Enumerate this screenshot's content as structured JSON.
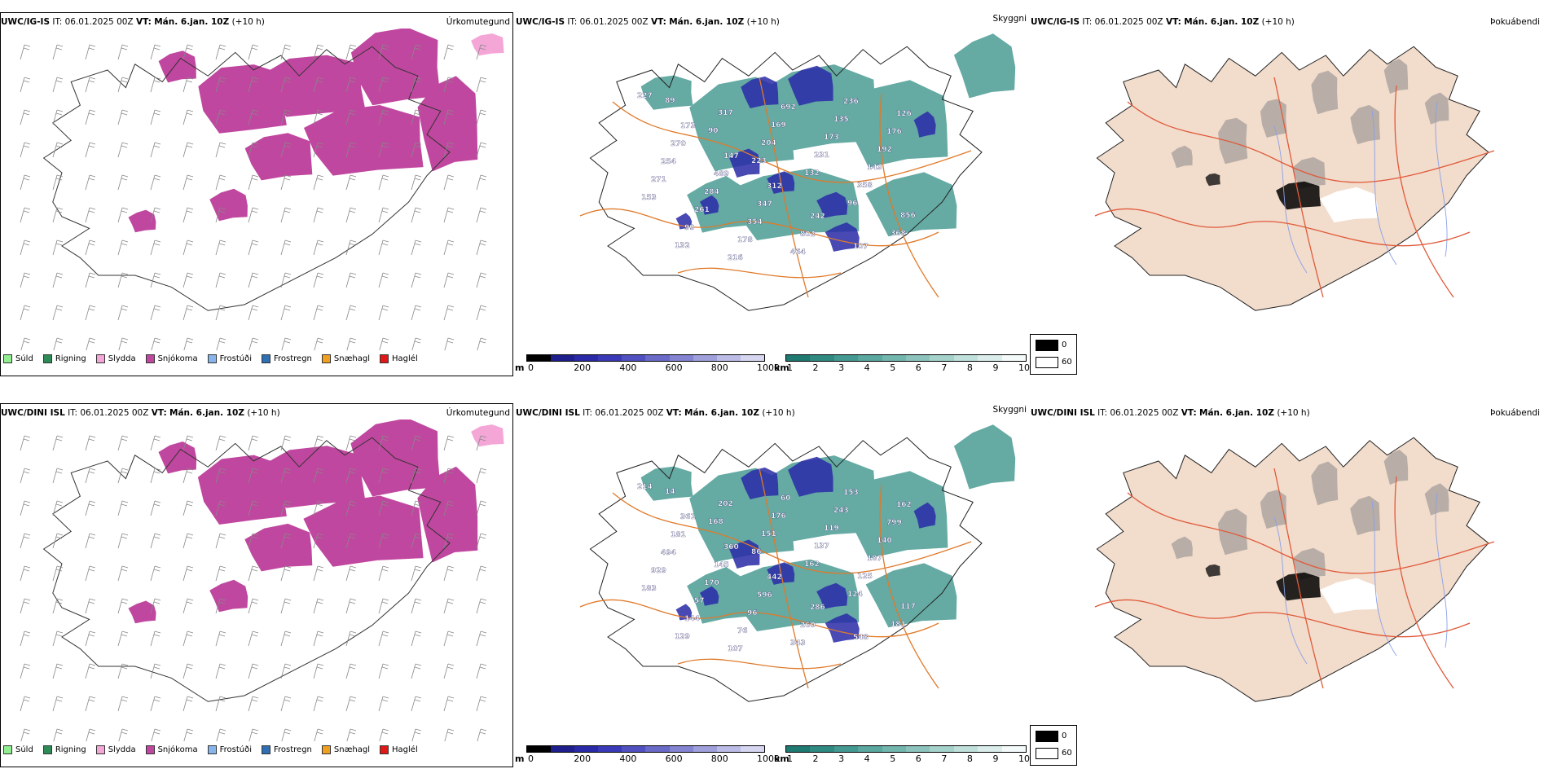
{
  "panels": [
    {
      "model": "UWC/IG-IS",
      "it_label": "IT:",
      "it_value": "06.01.2025 00Z",
      "vt_label": "VT:",
      "vt_value": "Mán. 6.jan. 10Z",
      "lead": "(+10 h)",
      "field": "Úrkomutegund"
    },
    {
      "model": "UWC/IG-IS",
      "it_label": "IT:",
      "it_value": "06.01.2025 00Z",
      "vt_label": "VT:",
      "vt_value": "Mán. 6.jan. 10Z",
      "lead": "(+10 h)",
      "field": "Skyggni"
    },
    {
      "model": "UWC/IG-IS",
      "it_label": "IT:",
      "it_value": "06.01.2025 00Z",
      "vt_label": "VT:",
      "vt_value": "Mán. 6.jan. 10Z",
      "lead": "(+10 h)",
      "field": "Þokuábendi"
    },
    {
      "model": "UWC/DINI ISL",
      "it_label": "IT:",
      "it_value": "06.01.2025 00Z",
      "vt_label": "VT:",
      "vt_value": "Mán. 6.jan. 10Z",
      "lead": "(+10 h)",
      "field": "Úrkomutegund"
    },
    {
      "model": "UWC/DINI ISL",
      "it_label": "IT:",
      "it_value": "06.01.2025 00Z",
      "vt_label": "VT:",
      "vt_value": "Mán. 6.jan. 10Z",
      "lead": "(+10 h)",
      "field": "Skyggni"
    },
    {
      "model": "UWC/DINI ISL",
      "it_label": "IT:",
      "it_value": "06.01.2025 00Z",
      "vt_label": "VT:",
      "vt_value": "Mán. 6.jan. 10Z",
      "lead": "(+10 h)",
      "field": "Þokuábendi"
    }
  ],
  "precip_legend": [
    {
      "label": "Súld",
      "color": "#90ee90"
    },
    {
      "label": "Rigning",
      "color": "#2e8b57"
    },
    {
      "label": "Slydda",
      "color": "#f4a6d7"
    },
    {
      "label": "Snjókoma",
      "color": "#c0479f"
    },
    {
      "label": "Frostúði",
      "color": "#87b5eb"
    },
    {
      "label": "Frostregn",
      "color": "#2f6fb3"
    },
    {
      "label": "Snæhagl",
      "color": "#f0a020"
    },
    {
      "label": "Haglél",
      "color": "#e01818"
    }
  ],
  "ceiling_scale": {
    "unit": "m",
    "ticks": [
      "0",
      "200",
      "400",
      "600",
      "800",
      "1000"
    ]
  },
  "vis_scale": {
    "unit": "km",
    "ticks": [
      "1",
      "2",
      "3",
      "4",
      "5",
      "6",
      "7",
      "8",
      "9",
      "10"
    ]
  },
  "fog_legend": {
    "dark": "0",
    "light": "60"
  },
  "ceiling_labels_top": [
    "227",
    "173",
    "147",
    "312",
    "242",
    "107",
    "126",
    "270",
    "489",
    "347",
    "802",
    "236",
    "176",
    "254",
    "284",
    "354",
    "464",
    "135",
    "192",
    "271",
    "261",
    "178",
    "692",
    "173",
    "143",
    "153",
    "99",
    "216",
    "169",
    "231",
    "358",
    "856",
    "132",
    "317",
    "204",
    "132",
    "96",
    "368",
    "89",
    "90",
    "223"
  ],
  "ceiling_labels_bottom": [
    "214",
    "361",
    "360",
    "442",
    "286",
    "548",
    "162",
    "181",
    "145",
    "596",
    "260",
    "153",
    "799",
    "494",
    "170",
    "96",
    "343",
    "243",
    "140",
    "929",
    "57",
    "76",
    "60",
    "119",
    "187",
    "183",
    "144",
    "107",
    "176",
    "137",
    "125",
    "117",
    "129",
    "202",
    "151",
    "162",
    "124",
    "181",
    "14",
    "168",
    "86"
  ],
  "colors": {
    "snow": "#c0479f",
    "sleet": "#f4a6d7",
    "cloud_teal": "#2a8a80",
    "cloud_blue": "#2a2aa8",
    "road": "#e07a2a",
    "fog_land": "#f2dccc",
    "fog_road": "#e05a3a",
    "fog_river": "#8aa0e8"
  }
}
